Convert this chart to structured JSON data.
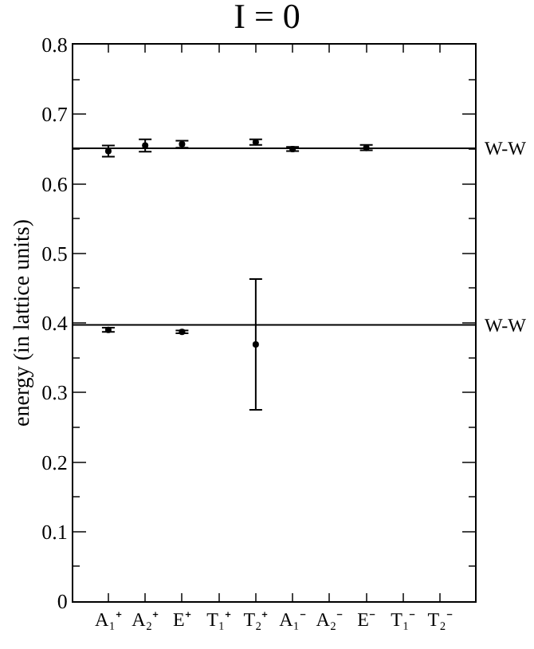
{
  "chart_data": {
    "type": "scatter",
    "title": "I = 0",
    "ylabel": "energy (in lattice units)",
    "categories": [
      "A₁⁺",
      "A₂⁺",
      "E⁺",
      "T₁⁺",
      "T₂⁺",
      "A₁⁻",
      "A₂⁻",
      "E⁻",
      "T₁⁻",
      "T₂⁻"
    ],
    "series": [
      {
        "color": "#000000",
        "values": [
          0.39,
          null,
          0.387,
          null,
          0.369,
          null,
          null,
          null,
          null,
          null
        ],
        "errors": [
          0.003,
          null,
          0.002,
          null,
          0.094,
          null,
          null,
          null,
          null,
          null
        ]
      },
      {
        "color": "#000000",
        "values": [
          0.647,
          0.655,
          0.657,
          null,
          0.66,
          0.65,
          null,
          0.652,
          null,
          null
        ],
        "errors": [
          0.008,
          0.009,
          0.005,
          null,
          0.004,
          0.003,
          null,
          0.004,
          null,
          null
        ]
      }
    ],
    "ylim": [
      0,
      0.8
    ],
    "yticks": [
      0,
      {
        "value": 0.05,
        "label": null
      },
      0.1,
      {
        "value": 0.15,
        "label": null
      },
      0.2,
      {
        "value": 0.25,
        "label": null
      },
      0.3,
      {
        "value": 0.35,
        "label": null
      },
      0.4,
      {
        "value": 0.45,
        "label": null
      },
      0.5,
      {
        "value": 0.55,
        "label": null
      },
      0.6,
      {
        "value": 0.65,
        "label": null
      },
      0.7,
      {
        "value": 0.75,
        "label": null
      },
      0.8
    ],
    "ref_lines": [
      {
        "axis": "y",
        "value": 0.397,
        "label": "W-W",
        "color": "#000000"
      },
      {
        "axis": "y",
        "value": 0.651,
        "label": "W-W",
        "color": "#000000"
      }
    ],
    "marker": "circle"
  }
}
